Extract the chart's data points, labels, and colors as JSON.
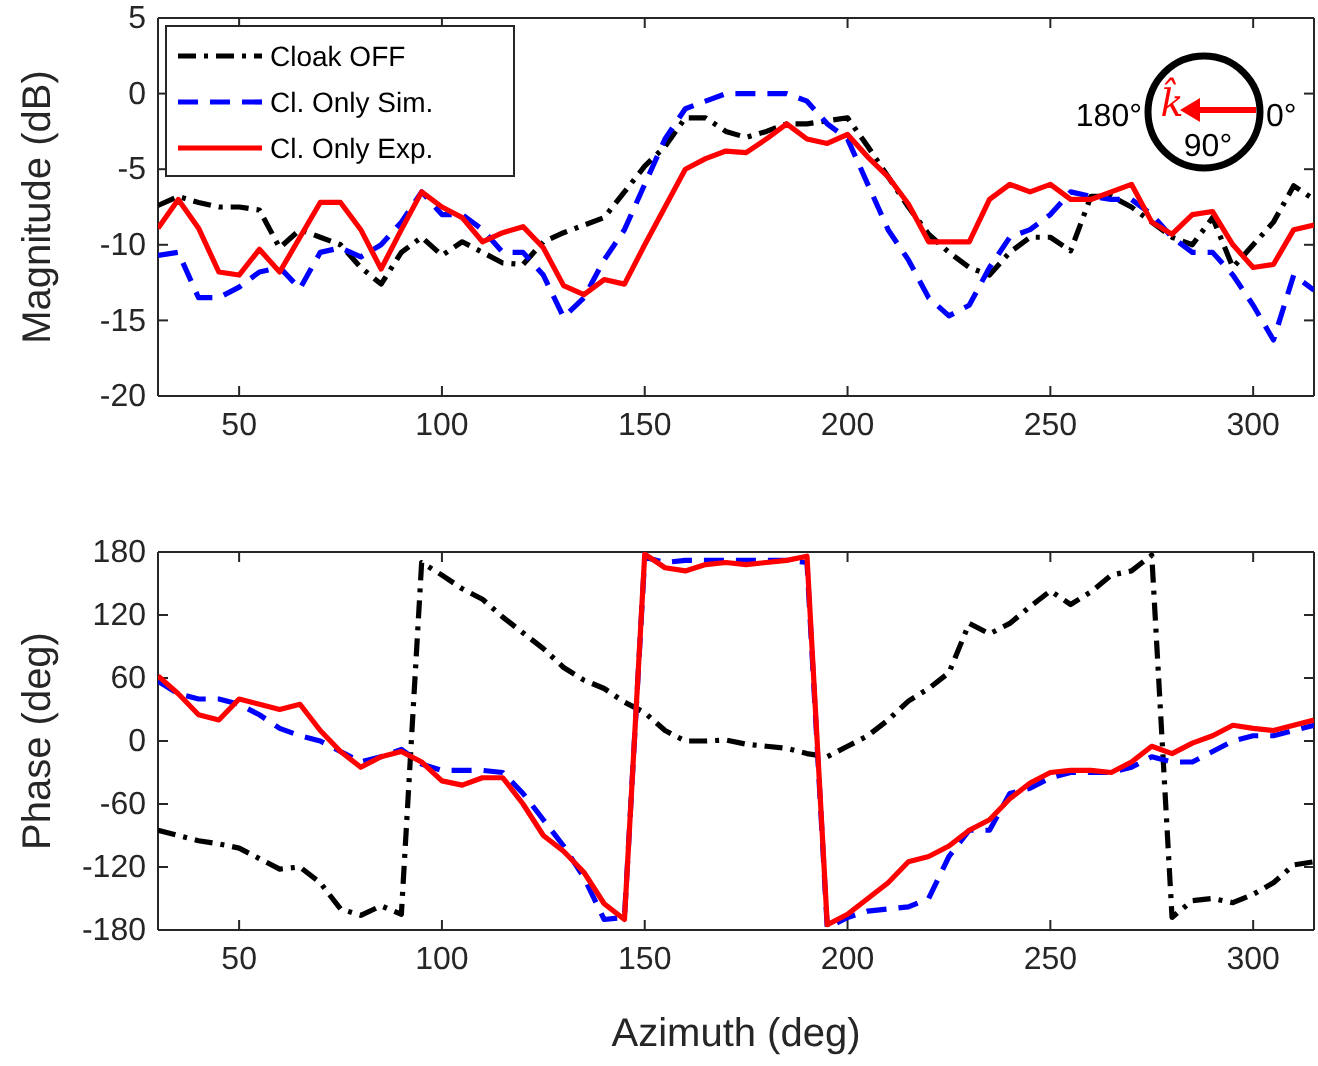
{
  "chart_data": [
    {
      "type": "line",
      "ylabel": "Magnitude (dB)",
      "x": [
        30,
        35,
        40,
        45,
        50,
        55,
        60,
        65,
        70,
        75,
        80,
        85,
        90,
        95,
        100,
        105,
        110,
        115,
        120,
        125,
        130,
        135,
        140,
        145,
        150,
        155,
        160,
        165,
        170,
        175,
        180,
        185,
        190,
        195,
        200,
        205,
        210,
        215,
        220,
        225,
        230,
        235,
        240,
        245,
        250,
        255,
        260,
        265,
        270,
        275,
        280,
        285,
        290,
        295,
        300,
        305,
        310,
        315
      ],
      "xlim": [
        30,
        315
      ],
      "xticks": [
        50,
        100,
        150,
        200,
        250,
        300
      ],
      "ylim": [
        -20,
        5
      ],
      "yticks": [
        -20,
        -15,
        -10,
        -5,
        0,
        5
      ],
      "legend": "top left",
      "grid": false,
      "series": [
        {
          "name": "Cloak OFF",
          "color": "#000000",
          "line_style": "dashdot",
          "values": [
            -7.4,
            -6.8,
            -7.2,
            -7.5,
            -7.5,
            -7.7,
            -10.2,
            -9,
            -9.5,
            -10,
            -11.5,
            -12.6,
            -10.5,
            -9.5,
            -10.7,
            -9.8,
            -10.5,
            -11.2,
            -11.3,
            -9.8,
            -9.2,
            -8.7,
            -8.2,
            -6.5,
            -4.8,
            -3.5,
            -1.6,
            -1.6,
            -2.5,
            -2.9,
            -2.5,
            -2,
            -2,
            -1.8,
            -1.6,
            -3.5,
            -5.5,
            -7.5,
            -9.3,
            -10.5,
            -11.5,
            -12,
            -10.5,
            -9.5,
            -9.5,
            -10.4,
            -6.8,
            -6.8,
            -7.5,
            -8.5,
            -9.5,
            -10,
            -8.2,
            -11.5,
            -10,
            -8.5,
            -6.1,
            -7
          ]
        },
        {
          "name": "Cl. Only Sim.",
          "color": "#0000ff",
          "line_style": "dashed",
          "values": [
            -10.7,
            -10.5,
            -13.5,
            -13.5,
            -12.8,
            -11.8,
            -11.5,
            -12.9,
            -10.5,
            -10.2,
            -10.8,
            -10,
            -8.5,
            -6.5,
            -8,
            -8,
            -9,
            -10.5,
            -10.5,
            -12,
            -14.8,
            -13.5,
            -11,
            -9,
            -6,
            -3,
            -1,
            -0.5,
            0,
            0,
            0,
            0,
            -0.5,
            -2,
            -3,
            -6,
            -9,
            -11,
            -13.5,
            -14.7,
            -14,
            -11.5,
            -9.5,
            -9,
            -8,
            -6.5,
            -6.8,
            -7,
            -7,
            -8,
            -9.5,
            -10.5,
            -10.5,
            -12,
            -14,
            -16.3,
            -12,
            -13
          ]
        },
        {
          "name": "Cl. Only Exp.",
          "color": "#ff0000",
          "line_style": "solid",
          "values": [
            -8.9,
            -7,
            -8.9,
            -11.8,
            -12,
            -10.3,
            -11.8,
            -9.5,
            -7.2,
            -7.2,
            -9,
            -11.6,
            -9,
            -6.5,
            -7.5,
            -8.2,
            -9.8,
            -9.2,
            -8.8,
            -10.2,
            -12.7,
            -13.3,
            -12.3,
            -12.6,
            -10,
            -7.5,
            -5,
            -4.3,
            -3.8,
            -3.9,
            -3,
            -2,
            -3,
            -3.3,
            -2.7,
            -4.2,
            -5.5,
            -7.3,
            -9.8,
            -9.8,
            -9.8,
            -7,
            -6,
            -6.5,
            -6,
            -7,
            -7,
            -6.5,
            -6,
            -8.5,
            -9.3,
            -8,
            -7.8,
            -10,
            -11.5,
            -11.3,
            -9,
            -8.7
          ]
        }
      ],
      "annotations": [
        "180°",
        "0°",
        "90°",
        "k̂"
      ]
    },
    {
      "type": "line",
      "xlabel": "Azimuth (deg)",
      "ylabel": "Phase (deg)",
      "x": [
        30,
        35,
        40,
        45,
        50,
        55,
        60,
        65,
        70,
        75,
        80,
        85,
        90,
        95,
        100,
        105,
        110,
        115,
        120,
        125,
        130,
        135,
        140,
        145,
        150,
        155,
        160,
        165,
        170,
        175,
        180,
        185,
        190,
        195,
        200,
        205,
        210,
        215,
        220,
        225,
        230,
        235,
        240,
        245,
        250,
        255,
        260,
        265,
        270,
        275,
        280,
        285,
        290,
        295,
        300,
        305,
        310,
        315
      ],
      "xlim": [
        30,
        315
      ],
      "xticks": [
        50,
        100,
        150,
        200,
        250,
        300
      ],
      "ylim": [
        -180,
        180
      ],
      "yticks": [
        -180,
        -120,
        -60,
        0,
        60,
        120,
        180
      ],
      "grid": false,
      "series": [
        {
          "color": "#000000",
          "line_style": "dashdot",
          "values": [
            -85,
            -90,
            -95,
            -98,
            -102,
            -112,
            -122,
            -120,
            -135,
            -160,
            -166,
            -157,
            -165,
            170,
            158,
            145,
            135,
            118,
            103,
            88,
            70,
            58,
            50,
            37,
            27,
            10,
            0,
            0,
            1,
            -3,
            -5,
            -7,
            -12,
            -15,
            -5,
            5,
            20,
            38,
            50,
            65,
            112,
            102,
            112,
            128,
            143,
            130,
            142,
            158,
            162,
            177,
            -168,
            -152,
            -150,
            -154,
            -146,
            -135,
            -118,
            -115
          ]
        },
        {
          "color": "#0000ff",
          "line_style": "dashed",
          "values": [
            57,
            45,
            40,
            40,
            35,
            25,
            12,
            5,
            0,
            -10,
            -20,
            -15,
            -8,
            -22,
            -28,
            -28,
            -28,
            -30,
            -50,
            -75,
            -100,
            -130,
            -170,
            -168,
            175,
            170,
            172,
            172,
            172,
            172,
            172,
            172,
            170,
            -178,
            -168,
            -162,
            -160,
            -158,
            -150,
            -110,
            -85,
            -85,
            -50,
            -45,
            -35,
            -30,
            -30,
            -30,
            -25,
            -15,
            -20,
            -20,
            -10,
            0,
            5,
            5,
            10,
            15
          ]
        },
        {
          "color": "#ff0000",
          "line_style": "solid",
          "values": [
            62,
            45,
            25,
            20,
            40,
            35,
            30,
            35,
            10,
            -10,
            -25,
            -15,
            -10,
            -20,
            -38,
            -42,
            -35,
            -35,
            -60,
            -90,
            -105,
            -125,
            -155,
            -170,
            178,
            165,
            162,
            168,
            170,
            168,
            170,
            172,
            176,
            -175,
            -165,
            -150,
            -135,
            -115,
            -110,
            -100,
            -85,
            -75,
            -55,
            -40,
            -30,
            -28,
            -28,
            -30,
            -20,
            -5,
            -12,
            -2,
            5,
            15,
            12,
            10,
            15,
            20
          ]
        }
      ]
    }
  ]
}
